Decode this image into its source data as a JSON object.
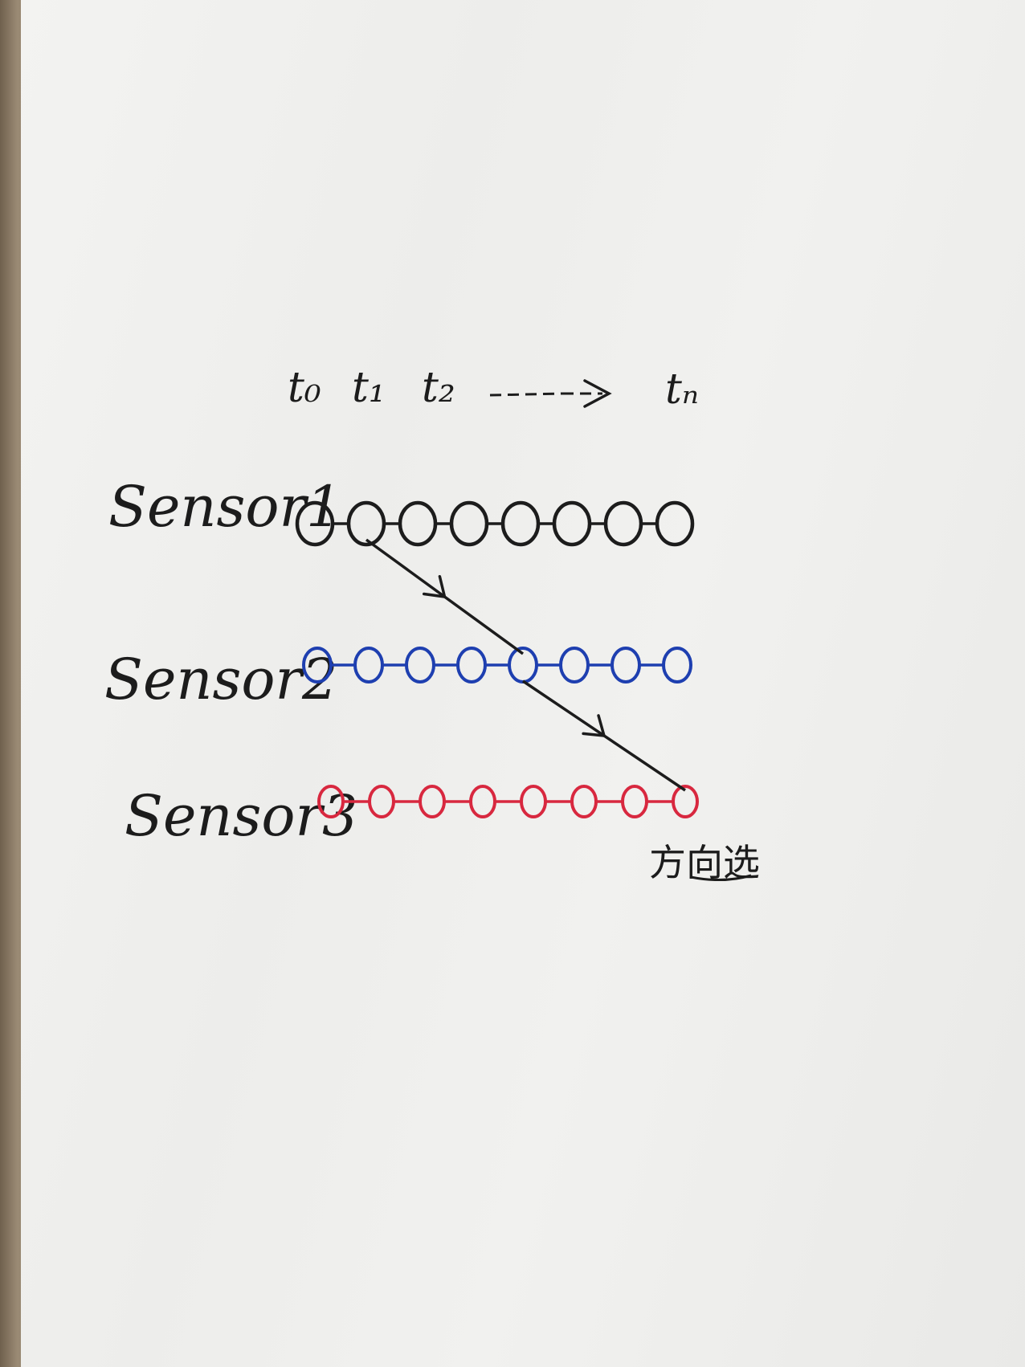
{
  "time_axis": {
    "t0": "t₀",
    "t1": "t₁",
    "t2": "t₂",
    "tN": "tₙ"
  },
  "sensors": [
    {
      "label": "Sensor1",
      "color": "#1c1c1c",
      "nodes": 8
    },
    {
      "label": "Sensor2",
      "color": "#1e3fb0",
      "nodes": 8
    },
    {
      "label": "Sensor3",
      "color": "#d8283f",
      "nodes": 8
    }
  ],
  "arrows": [
    {
      "from": {
        "sensor": 1,
        "node": 2
      },
      "to": {
        "sensor": 2,
        "node": 5
      }
    },
    {
      "from": {
        "sensor": 2,
        "node": 5
      },
      "to": {
        "sensor": 3,
        "node": 8
      }
    }
  ],
  "annotation": "方向选",
  "colors": {
    "ink": "#1c1c1c"
  }
}
